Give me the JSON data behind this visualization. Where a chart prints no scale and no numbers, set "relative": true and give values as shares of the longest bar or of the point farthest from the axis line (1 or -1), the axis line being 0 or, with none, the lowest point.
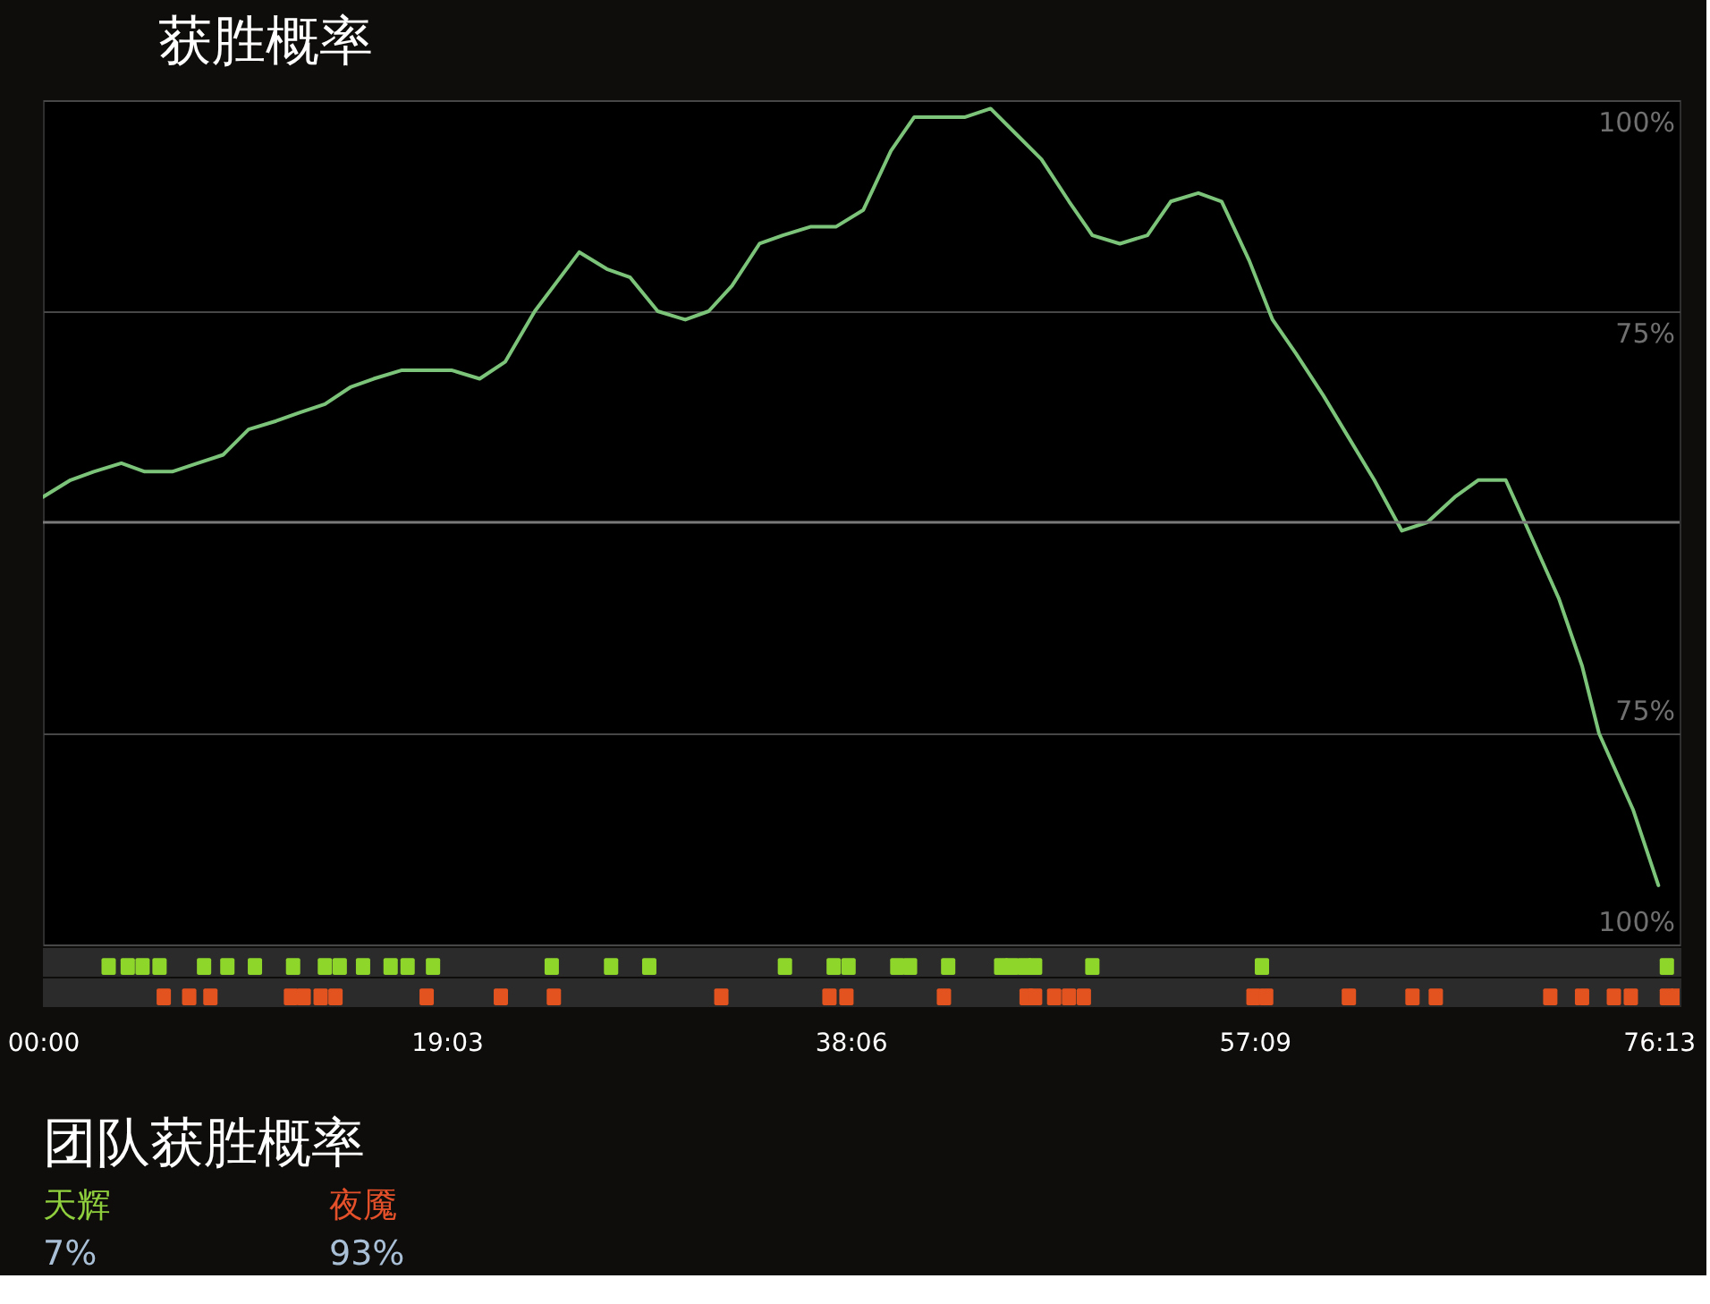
{
  "chart_data": [
    {
      "type": "line",
      "title": "获胜概率",
      "x": [
        0,
        1.3,
        2.4,
        3.7,
        4.8,
        6.1,
        7.3,
        8.5,
        9.7,
        11.0,
        12.1,
        13.3,
        14.5,
        15.6,
        16.9,
        19.3,
        20.6,
        21.8,
        23.2,
        25.3,
        26.6,
        27.7,
        29.0,
        30.3,
        31.4,
        32.5,
        33.8,
        34.9,
        36.2,
        37.4,
        38.7,
        40.0,
        41.1,
        43.5,
        44.7,
        45.9,
        47.1,
        48.4,
        49.5,
        50.8,
        52.1,
        53.2,
        54.5,
        55.6,
        56.9,
        58.0,
        59.1,
        60.4,
        61.6,
        62.8,
        64.1,
        65.3,
        66.6,
        67.7,
        69.0,
        69.9,
        71.5,
        72.6,
        73.4,
        75.0,
        76.2
      ],
      "series": [
        {
          "color": "#7cc47a",
          "values": [
            53,
            55,
            56,
            57,
            56,
            56,
            57,
            58,
            61,
            62,
            63,
            64,
            66,
            67,
            68,
            68,
            67,
            69,
            75,
            82,
            80,
            79,
            75,
            74,
            75,
            78,
            83,
            84,
            85,
            85,
            87,
            94,
            98,
            98,
            99,
            96,
            93,
            88,
            84,
            83,
            84,
            88,
            89,
            88,
            81,
            74,
            70,
            65,
            60,
            55,
            49,
            50,
            53,
            55,
            55,
            50,
            41,
            33,
            25,
            16,
            7
          ]
        }
      ],
      "xlim": [
        0,
        77.2
      ],
      "ylim": [
        0,
        100
      ],
      "yticks": [
        {
          "value": 100,
          "label": "100%"
        },
        {
          "value": 75,
          "label": "75%"
        }
      ],
      "y2lim": [
        100,
        0
      ],
      "y2ticks": [
        {
          "value": 75,
          "label": "75%"
        },
        {
          "value": 100,
          "label": "100%"
        }
      ],
      "ref_lines": [
        {
          "axis": "y",
          "value": 50,
          "color": "#7a7a7a"
        }
      ],
      "grid": "y",
      "tick_labels": "y"
    },
    {
      "type": "bar",
      "relative": true,
      "series": [
        {
          "color": "#8fd62b",
          "x": [
            3.1,
            4.0,
            4.7,
            5.5,
            7.6,
            8.7,
            10.0,
            11.8,
            13.3,
            14.0,
            15.1,
            16.4,
            17.2,
            18.4,
            24.0,
            26.8,
            28.6,
            35.0,
            37.3,
            38.0,
            40.3,
            40.9,
            42.7,
            45.2,
            45.7,
            46.3,
            46.8,
            49.5,
            57.5,
            76.6
          ],
          "values": [
            1,
            1,
            1,
            1,
            1,
            1,
            1,
            1,
            1,
            1,
            1,
            1,
            1,
            1,
            1,
            1,
            1,
            1,
            1,
            1,
            1,
            1,
            1,
            1,
            1,
            1,
            1,
            1,
            1,
            1
          ]
        }
      ],
      "xlim": [
        0,
        77.2
      ],
      "tick_labels": false
    },
    {
      "type": "bar",
      "relative": true,
      "series": [
        {
          "color": "#e2531f",
          "x": [
            5.7,
            6.9,
            7.9,
            11.7,
            12.3,
            13.1,
            13.8,
            18.1,
            21.6,
            24.1,
            32.0,
            37.1,
            37.9,
            42.5,
            46.4,
            46.8,
            47.7,
            48.4,
            49.1,
            57.1,
            57.7,
            61.6,
            64.6,
            65.7,
            71.1,
            72.6,
            74.1,
            74.9,
            76.6,
            77.1
          ],
          "values": [
            1,
            1,
            1,
            1,
            1,
            1,
            1,
            1,
            1,
            1,
            1,
            1,
            1,
            1,
            1,
            1,
            1,
            1,
            1,
            1,
            1,
            1,
            1,
            1,
            1,
            1,
            1,
            1,
            1,
            1
          ]
        }
      ],
      "xlim": [
        0,
        77.2
      ],
      "xticks": [
        {
          "value": 0,
          "label": "00:00"
        },
        {
          "value": 19.05,
          "label": "19:03"
        },
        {
          "value": 38.1,
          "label": "38:06"
        },
        {
          "value": 57.15,
          "label": "57:09"
        },
        {
          "value": 76.2167,
          "label": "76:13"
        }
      ],
      "tick_labels": "x"
    },
    {
      "type": "other",
      "title": "团队获胜概率",
      "annotations": [
        "天辉",
        "夜魇",
        "7%",
        "93%"
      ],
      "colors": [
        "#8fcf3e",
        "#e4502a",
        "#a9bfd6",
        "#a9bfd6"
      ]
    }
  ]
}
